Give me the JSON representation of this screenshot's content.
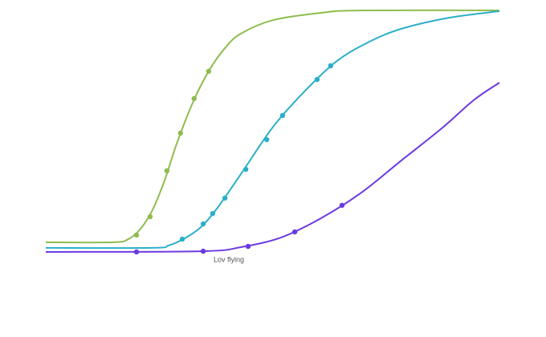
{
  "chart_data": {
    "type": "line",
    "xlim": [
      0,
      100
    ],
    "ylim": [
      0,
      100
    ],
    "annotation": "Lov flying",
    "series": [
      {
        "color": "#8fbc4f",
        "x": [
          0,
          14.7,
          18.2,
          20.9,
          23.5,
          26.2,
          28.8,
          32.4,
          35.9,
          39.5,
          43.0,
          50.1,
          60.7,
          69.6,
          100
        ],
        "values": [
          4.0,
          4.0,
          5.3,
          9.6,
          17.3,
          29.6,
          44.5,
          61.8,
          74.8,
          84.4,
          90.4,
          96.0,
          99.0,
          100,
          100
        ],
        "markers": {
          "x": [
            20.0,
            23.0,
            26.7,
            29.7,
            32.7,
            35.9
          ],
          "values": [
            7.0,
            14.6,
            33.6,
            49.2,
            63.5,
            74.8
          ]
        }
      },
      {
        "color": "#2bafc9",
        "x": [
          0,
          23.5,
          27.1,
          30.6,
          34.2,
          37.7,
          43.0,
          50.1,
          57.2,
          64.2,
          71.3,
          78.4,
          89.0,
          100
        ],
        "values": [
          1.7,
          1.7,
          2.7,
          5.6,
          10.3,
          17.9,
          32.2,
          51.8,
          66.8,
          79.1,
          87.0,
          92.4,
          97.0,
          99.7
        ],
        "markers": {
          "x": [
            30.1,
            34.7,
            36.8,
            39.5,
            44.1,
            48.7,
            52.2,
            59.8,
            62.8
          ],
          "values": [
            5.3,
            11.6,
            15.9,
            22.3,
            34.2,
            46.5,
            56.5,
            71.4,
            77.1
          ]
        }
      },
      {
        "color": "#6a3be0",
        "x": [
          0,
          34.2,
          43.0,
          51.9,
          60.7,
          69.6,
          78.4,
          87.3,
          94.3,
          100
        ],
        "values": [
          0,
          0.3,
          2.0,
          6.0,
          14.0,
          24.6,
          37.9,
          51.2,
          62.8,
          70.1
        ],
        "markers": {
          "x": [
            20.0,
            34.7,
            44.6,
            54.9,
            65.3
          ],
          "values": [
            0,
            0.3,
            2.3,
            8.3,
            19.3
          ]
        }
      }
    ]
  }
}
